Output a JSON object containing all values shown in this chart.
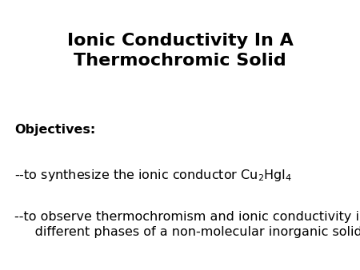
{
  "title_line1": "Ionic Conductivity In A",
  "title_line2": "Thermochromic Solid",
  "objectives_label": "Objectives:",
  "bullet1_prefix": "--to synthesize the ionic conductor Cu",
  "bullet1_sub1": "2",
  "bullet1_mid": "HgI",
  "bullet1_sub2": "4",
  "bullet2_line1": "--to observe thermochromism and ionic conductivity in",
  "bullet2_line2": "     different phases of a non-molecular inorganic solid",
  "bg_color": "#ffffff",
  "text_color": "#000000",
  "title_fontsize": 16,
  "body_fontsize": 11.5,
  "objectives_fontsize": 11.5
}
